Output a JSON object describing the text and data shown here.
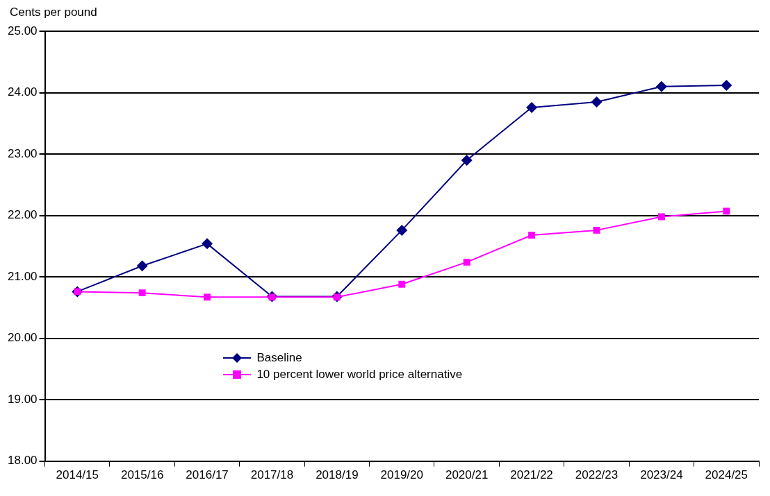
{
  "chart_data": {
    "type": "line",
    "ylabel": "Cents per pound",
    "categories": [
      "2014/15",
      "2015/16",
      "2016/17",
      "2017/18",
      "2018/19",
      "2019/20",
      "2020/21",
      "2021/22",
      "2022/23",
      "2023/24",
      "2024/25"
    ],
    "series": [
      {
        "name": "Baseline",
        "color": "#000080",
        "marker": "diamond",
        "values": [
          20.76,
          21.18,
          21.54,
          20.68,
          20.68,
          21.76,
          22.9,
          23.76,
          23.85,
          24.1,
          24.12
        ]
      },
      {
        "name": "10 percent lower world price alternative",
        "color": "#ff00ff",
        "marker": "square",
        "values": [
          20.76,
          20.74,
          20.67,
          20.67,
          20.67,
          20.88,
          21.24,
          21.68,
          21.76,
          21.98,
          22.07
        ]
      }
    ],
    "ylim": [
      18,
      25
    ],
    "yticks": [
      {
        "value": 18,
        "label": "18.00"
      },
      {
        "value": 19,
        "label": "19.00"
      },
      {
        "value": 20,
        "label": "20.00"
      },
      {
        "value": 21,
        "label": "21.00"
      },
      {
        "value": 22,
        "label": "22.00"
      },
      {
        "value": 23,
        "label": "23.00"
      },
      {
        "value": 24,
        "label": "24.00"
      },
      {
        "value": 25,
        "label": "25.00"
      }
    ],
    "grid": "y",
    "legend": "bottom left",
    "line_style": "solid"
  }
}
